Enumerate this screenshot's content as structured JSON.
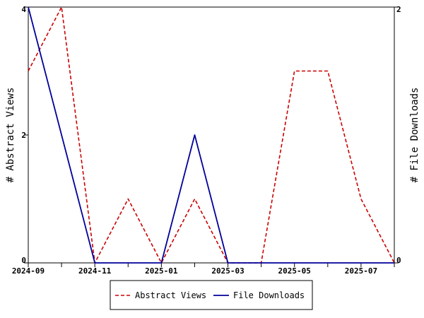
{
  "chart_data": {
    "type": "line",
    "x": [
      "2024-09",
      "2024-10",
      "2024-11",
      "2024-12",
      "2025-01",
      "2025-02",
      "2025-03",
      "2025-04",
      "2025-05",
      "2025-06",
      "2025-07",
      "2025-08"
    ],
    "x_tick_labels": [
      "2024-09",
      "2024-11",
      "2025-01",
      "2025-03",
      "2025-05",
      "2025-07"
    ],
    "series": [
      {
        "name": "Abstract Views",
        "axis": "left",
        "color": "#cc0000",
        "dash": "dashed",
        "values": [
          3,
          4,
          0,
          1,
          0,
          1,
          0,
          0,
          3,
          3,
          1,
          0
        ]
      },
      {
        "name": "File Downloads",
        "axis": "right",
        "color": "#000099",
        "dash": "solid",
        "values": [
          2,
          1,
          0,
          0,
          0,
          1,
          0,
          0,
          0,
          0,
          0,
          0
        ]
      }
    ],
    "y_left": {
      "label": "# Abstract Views",
      "ylim": [
        0,
        4
      ],
      "tick_labels": [
        "0",
        "2",
        "4"
      ]
    },
    "y_right": {
      "label": "# File Downloads",
      "ylim": [
        0,
        2
      ],
      "tick_labels": [
        "0",
        "2"
      ]
    },
    "grid": false,
    "legend_position": "bottom-center"
  }
}
